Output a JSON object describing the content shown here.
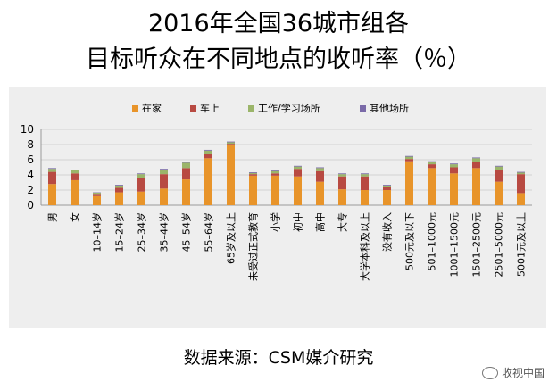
{
  "title_line1": "2016年全国36城市组各",
  "title_line2": "目标听众在不同地点的收听率（％）",
  "source": "数据来源：CSM媒介研究",
  "watermark": "收视中国",
  "colors": {
    "在家": "#e8942a",
    "车上": "#b84a42",
    "工作/学习场所": "#9bb56a",
    "其他场所": "#7a6aa8"
  },
  "chart_data": {
    "type": "bar",
    "stacked": true,
    "categories": [
      "男",
      "女",
      "10–14岁",
      "15–24岁",
      "25–34岁",
      "35–44岁",
      "45–54岁",
      "55–64岁",
      "65岁及以上",
      "未受过正式教育",
      "小学",
      "初中",
      "高中",
      "大专",
      "大学本科及以上",
      "没有收入",
      "500元及以下",
      "501–1000元",
      "1001–1500元",
      "1501–2500元",
      "2501–5000元",
      "5001元及以上"
    ],
    "series": [
      {
        "name": "在家",
        "values": [
          2.8,
          3.3,
          1.2,
          1.7,
          1.8,
          2.2,
          3.4,
          6.2,
          7.9,
          3.9,
          3.9,
          3.8,
          3.1,
          2.1,
          2.0,
          2.0,
          5.8,
          4.9,
          4.2,
          4.9,
          3.1,
          1.6
        ]
      },
      {
        "name": "车上",
        "values": [
          1.6,
          0.9,
          0.3,
          0.6,
          1.8,
          1.9,
          1.5,
          0.6,
          0.2,
          0.2,
          0.3,
          1.0,
          1.4,
          1.7,
          1.8,
          0.4,
          0.3,
          0.5,
          0.8,
          0.8,
          1.5,
          2.5
        ]
      },
      {
        "name": "工作/学习场所",
        "values": [
          0.4,
          0.4,
          0.15,
          0.3,
          0.5,
          0.6,
          0.7,
          0.4,
          0.2,
          0.15,
          0.3,
          0.3,
          0.4,
          0.3,
          0.3,
          0.2,
          0.3,
          0.3,
          0.4,
          0.5,
          0.5,
          0.2
        ]
      },
      {
        "name": "其他场所",
        "values": [
          0.1,
          0.1,
          0.05,
          0.1,
          0.1,
          0.1,
          0.1,
          0.1,
          0.1,
          0.1,
          0.1,
          0.1,
          0.1,
          0.1,
          0.1,
          0.1,
          0.1,
          0.1,
          0.1,
          0.1,
          0.1,
          0.1
        ]
      }
    ],
    "yticks": [
      "0",
      "2",
      "4",
      "6",
      "8",
      "10"
    ],
    "ylim": [
      0,
      10
    ],
    "legend_position": "top",
    "grid": true
  }
}
